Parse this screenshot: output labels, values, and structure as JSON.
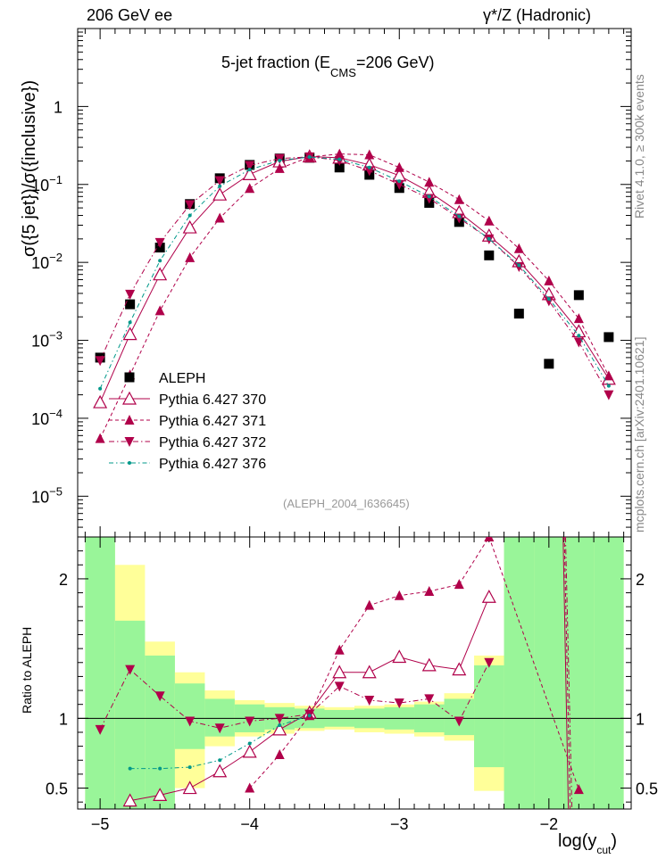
{
  "header": {
    "left": "206 GeV ee",
    "right": "γ*/Z (Hadronic)"
  },
  "side_labels": {
    "rivet": "Rivet 4.1.0, ≥ 300k events",
    "mcplots": "mcplots.cern.ch [arXiv:2401.10621]"
  },
  "main_plot": {
    "title_prefix": "5-jet fraction (E",
    "title_sub": "CMS",
    "title_suffix": "=206 GeV)",
    "analysis_id": "(ALEPH_2004_I636645)",
    "ylabel": "σ({5 jet})/σ({inclusive})"
  },
  "ratio_plot": {
    "ylabel": "Ratio to ALEPH"
  },
  "xaxis": {
    "label_prefix": "log(y",
    "label_sub": "cut",
    "label_suffix": ")"
  },
  "colors": {
    "data": "#000000",
    "mc": "#b0004a",
    "teal": "#00988a",
    "band_inner": "#99f599",
    "band_outer": "#ffff99"
  },
  "chart_data": [
    {
      "type": "line",
      "title": "5-jet fraction (E_CMS=206 GeV)",
      "xlabel": "log(y_cut)",
      "ylabel": "σ({5 jet})/σ({inclusive})",
      "yscale": "log",
      "xlim": [
        -5.15,
        -1.45
      ],
      "ylim": [
        3e-06,
        10
      ],
      "x_ticks": [
        "−5",
        "−4",
        "−3",
        "−2"
      ],
      "y_ticks": [
        "10^-5",
        "10^-4",
        "10^-3",
        "10^-2",
        "10^-1",
        "1"
      ],
      "legend": [
        "ALEPH",
        "Pythia 6.427 370",
        "Pythia 6.427 371",
        "Pythia 6.427 372",
        "Pythia 6.427 376"
      ],
      "series": [
        {
          "name": "ALEPH",
          "style": "square",
          "x": [
            -5.0,
            -4.8,
            -4.6,
            -4.4,
            -4.2,
            -4.0,
            -3.8,
            -3.6,
            -3.4,
            -3.2,
            -3.0,
            -2.8,
            -2.6,
            -2.4,
            -2.2,
            -2.0,
            -1.8,
            -1.6
          ],
          "y": [
            0.0006,
            0.0029,
            0.0155,
            0.056,
            0.12,
            0.178,
            0.215,
            0.22,
            0.165,
            0.133,
            0.09,
            0.058,
            0.033,
            0.0123,
            0.0022,
            0.0005,
            0.0038,
            0.0011
          ]
        },
        {
          "name": "Pythia 6.427 370",
          "style": "open-triangle-solid",
          "x": [
            -5.0,
            -4.8,
            -4.6,
            -4.4,
            -4.2,
            -4.0,
            -3.8,
            -3.6,
            -3.4,
            -3.2,
            -3.0,
            -2.8,
            -2.6,
            -2.4,
            -2.2,
            -2.0,
            -1.8,
            -1.6
          ],
          "y": [
            0.00016,
            0.0012,
            0.007,
            0.028,
            0.074,
            0.135,
            0.197,
            0.228,
            0.22,
            0.179,
            0.13,
            0.08,
            0.044,
            0.022,
            0.0103,
            0.0039,
            0.0013,
            0.00032
          ]
        },
        {
          "name": "Pythia 6.427 371",
          "style": "triangle-dashed",
          "x": [
            -5.0,
            -4.8,
            -4.6,
            -4.4,
            -4.2,
            -4.0,
            -3.8,
            -3.6,
            -3.4,
            -3.2,
            -3.0,
            -2.8,
            -2.6,
            -2.4,
            -2.2,
            -2.0,
            -1.8,
            -1.6
          ],
          "y": [
            5.5e-05,
            0.00036,
            0.0024,
            0.0115,
            0.037,
            0.089,
            0.16,
            0.225,
            0.246,
            0.24,
            0.165,
            0.107,
            0.064,
            0.034,
            0.015,
            0.0058,
            0.0019,
            0.00035
          ]
        },
        {
          "name": "Pythia 6.427 372",
          "style": "down-triangle-dashdot",
          "x": [
            -5.0,
            -4.8,
            -4.6,
            -4.4,
            -4.2,
            -4.0,
            -3.8,
            -3.6,
            -3.4,
            -3.2,
            -3.0,
            -2.8,
            -2.6,
            -2.4,
            -2.2,
            -2.0,
            -1.8,
            -1.6
          ],
          "y": [
            0.00055,
            0.0039,
            0.018,
            0.055,
            0.112,
            0.175,
            0.215,
            0.226,
            0.203,
            0.15,
            0.1,
            0.066,
            0.037,
            0.02,
            0.0088,
            0.0032,
            0.00095,
            0.0002
          ]
        },
        {
          "name": "Pythia 6.427 376",
          "style": "dot-dashdot",
          "x": [
            -5.0,
            -4.8,
            -4.6,
            -4.4,
            -4.2,
            -4.0,
            -3.8,
            -3.6,
            -3.4,
            -3.2,
            -3.0,
            -2.8,
            -2.6,
            -2.4,
            -2.2,
            -2.0,
            -1.8,
            -1.6
          ],
          "y": [
            0.00024,
            0.0017,
            0.0105,
            0.04,
            0.095,
            0.155,
            0.203,
            0.225,
            0.21,
            0.165,
            0.11,
            0.07,
            0.039,
            0.02,
            0.0092,
            0.0034,
            0.00115,
            0.00026
          ]
        }
      ]
    },
    {
      "type": "line",
      "title": "Ratio to ALEPH",
      "xlabel": "log(y_cut)",
      "ylabel": "Ratio to ALEPH",
      "xlim": [
        -5.15,
        -1.45
      ],
      "ylim": [
        0.35,
        2.3
      ],
      "y_ticks": [
        "0.5",
        "1",
        "2"
      ],
      "uncertainty_bands": {
        "bins": [
          -5.1,
          -4.9,
          -4.7,
          -4.5,
          -4.3,
          -4.1,
          -3.9,
          -3.7,
          -3.5,
          -3.3,
          -3.1,
          -2.9,
          -2.7,
          -2.5,
          -2.3,
          -2.1,
          -1.9,
          -1.7,
          -1.5
        ],
        "inner_low": [
          0.35,
          0.35,
          0.35,
          0.78,
          0.87,
          0.9,
          0.92,
          0.93,
          0.94,
          0.93,
          0.92,
          0.9,
          0.88,
          0.65,
          0.35,
          0.35,
          0.35,
          0.35
        ],
        "inner_high": [
          2.3,
          1.7,
          1.45,
          1.25,
          1.14,
          1.1,
          1.08,
          1.07,
          1.06,
          1.07,
          1.08,
          1.1,
          1.14,
          1.38,
          2.3,
          2.3,
          2.3,
          2.3
        ],
        "outer_low": [
          0.35,
          0.35,
          0.35,
          0.5,
          0.8,
          0.87,
          0.89,
          0.91,
          0.92,
          0.9,
          0.89,
          0.87,
          0.84,
          0.48,
          0.35,
          0.35,
          0.35,
          0.35
        ],
        "outer_high": [
          2.3,
          2.1,
          1.55,
          1.33,
          1.2,
          1.13,
          1.11,
          1.09,
          1.08,
          1.09,
          1.1,
          1.12,
          1.18,
          1.45,
          2.3,
          2.3,
          2.3,
          2.3
        ]
      },
      "series": [
        {
          "name": "Pythia 6.427 370",
          "style": "open-triangle-solid",
          "x": [
            -4.8,
            -4.6,
            -4.4,
            -4.2,
            -4.0,
            -3.8,
            -3.6,
            -3.4,
            -3.2,
            -3.0,
            -2.8,
            -2.6,
            -2.4
          ],
          "y": [
            0.41,
            0.45,
            0.5,
            0.62,
            0.76,
            0.92,
            1.04,
            1.33,
            1.33,
            1.44,
            1.38,
            1.35,
            1.87
          ]
        },
        {
          "name": "Pythia 6.427 371",
          "style": "triangle-dashed",
          "x": [
            -4.0,
            -3.8,
            -3.6,
            -3.4,
            -3.2,
            -3.0,
            -2.8,
            -2.6,
            -2.4,
            -1.8
          ],
          "y": [
            0.5,
            0.74,
            1.02,
            1.49,
            1.81,
            1.88,
            1.91,
            1.96,
            2.3,
            0.49
          ]
        },
        {
          "name": "Pythia 6.427 372",
          "style": "down-triangle-dashdot",
          "x": [
            -5.0,
            -4.8,
            -4.6,
            -4.4,
            -4.2,
            -4.0,
            -3.8,
            -3.6,
            -3.4,
            -3.2,
            -3.0,
            -2.8,
            -2.6,
            -2.4
          ],
          "y": [
            0.92,
            1.35,
            1.16,
            0.98,
            0.93,
            0.98,
            1.0,
            1.03,
            1.23,
            1.13,
            1.11,
            1.14,
            0.98,
            1.4
          ]
        },
        {
          "name": "Pythia 6.427 376",
          "style": "dot-dashdot",
          "x": [
            -4.8,
            -4.6,
            -4.4,
            -4.2,
            -4.0,
            -3.8,
            -3.6
          ],
          "y": [
            0.64,
            0.64,
            0.65,
            0.7,
            0.82,
            0.95,
            1.02
          ]
        }
      ]
    }
  ]
}
